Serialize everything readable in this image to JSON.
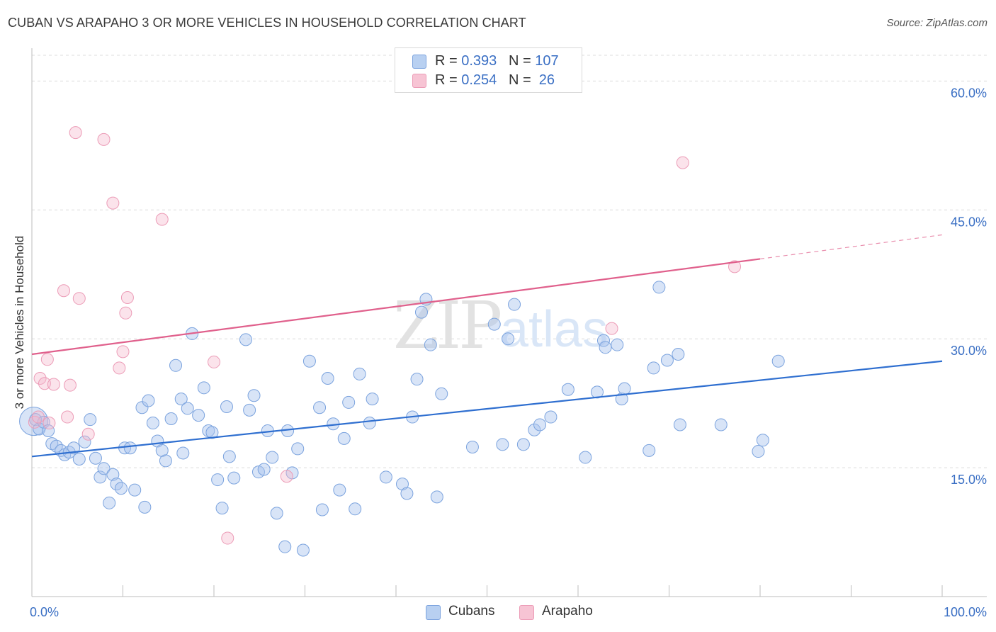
{
  "title": "CUBAN VS ARAPAHO 3 OR MORE VEHICLES IN HOUSEHOLD CORRELATION CHART",
  "source": "Source: ZipAtlas.com",
  "watermark": {
    "zip": "ZIP",
    "atlas": "atlas"
  },
  "legend": {
    "rows": [
      {
        "r_label": "R = ",
        "r_value": "0.393",
        "n_label": "N = ",
        "n_value": "107",
        "color": "#b8d0f1"
      },
      {
        "r_label": "R = ",
        "r_value": "0.254",
        "n_label": "N = ",
        "n_value": " 26",
        "color": "#f7c4d4"
      }
    ]
  },
  "bottom_legend": [
    {
      "label": "Cubans",
      "color": "#b8d0f1"
    },
    {
      "label": "Arapaho",
      "color": "#f7c4d4"
    }
  ],
  "colors": {
    "cubans_fill": "rgba(168,196,238,0.45)",
    "cubans_stroke": "#7ba3de",
    "cubans_line": "#2f6fd0",
    "arapaho_fill": "rgba(246,184,204,0.4)",
    "arapaho_stroke": "#ec9cb7",
    "arapaho_line": "#e0608c",
    "axis_text": "#3a6fc4"
  },
  "chart_data": {
    "type": "scatter",
    "title": "CUBAN VS ARAPAHO 3 OR MORE VEHICLES IN HOUSEHOLD CORRELATION CHART",
    "xlabel": "",
    "ylabel": "3 or more Vehicles in Household",
    "xlim": [
      0,
      100
    ],
    "ylim": [
      0,
      63
    ],
    "x_tick_labels": [
      "0.0%",
      "100.0%"
    ],
    "y_ticks": [
      15,
      30,
      45,
      60
    ],
    "y_tick_labels": [
      "15.0%",
      "30.0%",
      "45.0%",
      "60.0%"
    ],
    "grid": true,
    "legend_position": "top-center",
    "series": [
      {
        "name": "Cubans",
        "r": 0.393,
        "n": 107,
        "trend": {
          "x_start": 0,
          "y_start": 16.3,
          "x_end": 100,
          "y_end": 27.4
        },
        "points": [
          [
            0.4,
            20.6
          ],
          [
            0.8,
            19.5
          ],
          [
            1.3,
            20.3
          ],
          [
            1.8,
            19.3
          ],
          [
            2.2,
            17.8
          ],
          [
            2.7,
            17.5
          ],
          [
            3.2,
            17.0
          ],
          [
            3.6,
            16.5
          ],
          [
            4.1,
            16.8
          ],
          [
            4.6,
            17.3
          ],
          [
            5.2,
            16.0
          ],
          [
            5.8,
            18.0
          ],
          [
            6.4,
            20.6
          ],
          [
            7.0,
            16.1
          ],
          [
            7.5,
            13.9
          ],
          [
            7.9,
            14.9
          ],
          [
            8.5,
            10.9
          ],
          [
            8.9,
            14.2
          ],
          [
            9.3,
            13.1
          ],
          [
            9.8,
            12.6
          ],
          [
            10.2,
            17.3
          ],
          [
            10.8,
            17.3
          ],
          [
            11.3,
            12.4
          ],
          [
            12.1,
            22.0
          ],
          [
            12.4,
            10.4
          ],
          [
            12.8,
            22.8
          ],
          [
            13.3,
            20.2
          ],
          [
            13.8,
            18.1
          ],
          [
            14.3,
            17.0
          ],
          [
            14.7,
            15.8
          ],
          [
            15.3,
            20.7
          ],
          [
            15.8,
            26.9
          ],
          [
            16.4,
            23.0
          ],
          [
            16.6,
            16.7
          ],
          [
            17.1,
            21.9
          ],
          [
            17.6,
            30.6
          ],
          [
            18.3,
            21.1
          ],
          [
            18.9,
            24.3
          ],
          [
            19.4,
            19.3
          ],
          [
            19.8,
            19.1
          ],
          [
            20.4,
            13.6
          ],
          [
            20.9,
            10.3
          ],
          [
            21.4,
            22.1
          ],
          [
            21.7,
            16.3
          ],
          [
            22.2,
            13.8
          ],
          [
            23.5,
            29.9
          ],
          [
            23.9,
            21.7
          ],
          [
            24.4,
            23.4
          ],
          [
            24.9,
            14.5
          ],
          [
            25.5,
            14.8
          ],
          [
            25.9,
            19.3
          ],
          [
            26.4,
            16.2
          ],
          [
            26.9,
            9.7
          ],
          [
            27.8,
            5.8
          ],
          [
            28.1,
            19.3
          ],
          [
            28.6,
            14.4
          ],
          [
            29.2,
            17.2
          ],
          [
            29.8,
            5.4
          ],
          [
            30.5,
            27.4
          ],
          [
            31.6,
            22.0
          ],
          [
            31.9,
            10.1
          ],
          [
            32.5,
            25.4
          ],
          [
            33.1,
            20.1
          ],
          [
            33.8,
            12.4
          ],
          [
            34.3,
            18.4
          ],
          [
            34.8,
            22.6
          ],
          [
            35.5,
            10.2
          ],
          [
            36.0,
            25.9
          ],
          [
            37.1,
            20.2
          ],
          [
            37.4,
            23.0
          ],
          [
            38.9,
            13.9
          ],
          [
            40.7,
            13.1
          ],
          [
            41.2,
            12.0
          ],
          [
            41.8,
            20.9
          ],
          [
            42.3,
            25.3
          ],
          [
            42.8,
            33.1
          ],
          [
            43.3,
            34.6
          ],
          [
            43.8,
            29.3
          ],
          [
            45.0,
            23.6
          ],
          [
            44.5,
            11.6
          ],
          [
            48.4,
            17.4
          ],
          [
            50.8,
            31.7
          ],
          [
            51.7,
            17.7
          ],
          [
            52.3,
            30.0
          ],
          [
            53.0,
            34.0
          ],
          [
            54.0,
            17.7
          ],
          [
            55.2,
            19.4
          ],
          [
            55.8,
            20.0
          ],
          [
            57.0,
            20.9
          ],
          [
            58.9,
            24.1
          ],
          [
            60.8,
            16.2
          ],
          [
            62.1,
            23.8
          ],
          [
            62.8,
            29.8
          ],
          [
            63.0,
            29.0
          ],
          [
            64.3,
            29.3
          ],
          [
            64.8,
            23.0
          ],
          [
            65.1,
            24.2
          ],
          [
            67.8,
            17.0
          ],
          [
            68.3,
            26.6
          ],
          [
            68.9,
            36.0
          ],
          [
            69.8,
            27.5
          ],
          [
            71.0,
            28.2
          ],
          [
            71.2,
            20.0
          ],
          [
            75.7,
            20.0
          ],
          [
            79.8,
            16.9
          ],
          [
            80.3,
            18.2
          ],
          [
            82.0,
            27.4
          ]
        ]
      },
      {
        "name": "Arapaho",
        "r": 0.254,
        "n": 26,
        "trend": {
          "x_start": 0,
          "y_start": 28.2,
          "x_end": 80,
          "y_end": 39.3,
          "dashed_to_x": 100,
          "dashed_to_y": 42.1
        },
        "points": [
          [
            0.3,
            20.3
          ],
          [
            0.7,
            20.9
          ],
          [
            0.9,
            25.4
          ],
          [
            1.4,
            24.8
          ],
          [
            1.7,
            27.6
          ],
          [
            1.9,
            20.2
          ],
          [
            2.4,
            24.7
          ],
          [
            3.5,
            35.6
          ],
          [
            3.9,
            20.9
          ],
          [
            4.2,
            24.6
          ],
          [
            4.8,
            54.0
          ],
          [
            5.2,
            34.7
          ],
          [
            6.2,
            18.9
          ],
          [
            7.9,
            53.2
          ],
          [
            8.9,
            45.8
          ],
          [
            9.6,
            26.6
          ],
          [
            10.0,
            28.5
          ],
          [
            10.3,
            33.0
          ],
          [
            10.5,
            34.8
          ],
          [
            14.3,
            43.9
          ],
          [
            20.0,
            27.3
          ],
          [
            21.5,
            6.8
          ],
          [
            28.0,
            14.0
          ],
          [
            63.7,
            31.2
          ],
          [
            71.5,
            50.5
          ],
          [
            77.2,
            38.4
          ]
        ]
      }
    ]
  }
}
